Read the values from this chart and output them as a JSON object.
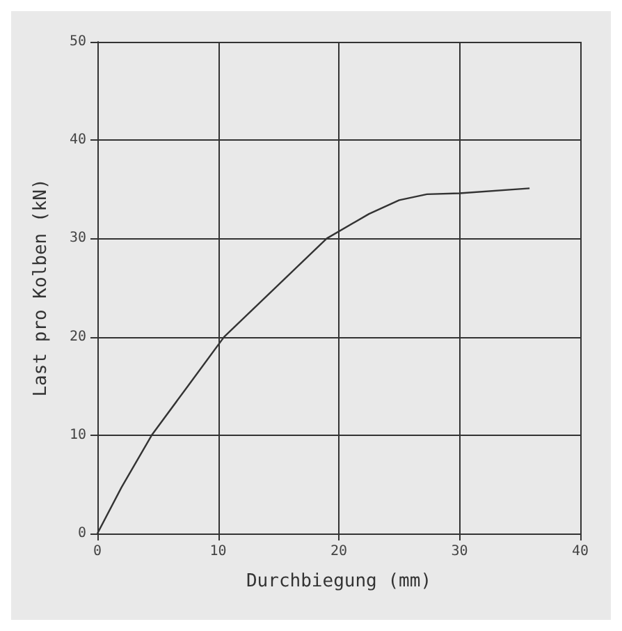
{
  "chart_data": {
    "type": "line",
    "xlabel": "Durchbiegung (mm)",
    "ylabel": "Last pro Kolben (kN)",
    "x": [
      0,
      2,
      4.5,
      7.5,
      10.5,
      15,
      19,
      22.5,
      25,
      27.3,
      30,
      35.8
    ],
    "series": [
      {
        "color": "#333333",
        "values": [
          0,
          4.7,
          10,
          15,
          20,
          25.3,
          30,
          32.5,
          33.9,
          34.5,
          34.6,
          35.1
        ]
      }
    ],
    "xlim": [
      0,
      40
    ],
    "xticks": [
      0,
      10,
      20,
      30,
      40
    ],
    "ylim": [
      0,
      50
    ],
    "yticks": [
      0,
      10,
      20,
      30,
      40,
      50
    ],
    "grid": true,
    "marker": "none",
    "line_style": "solid"
  }
}
